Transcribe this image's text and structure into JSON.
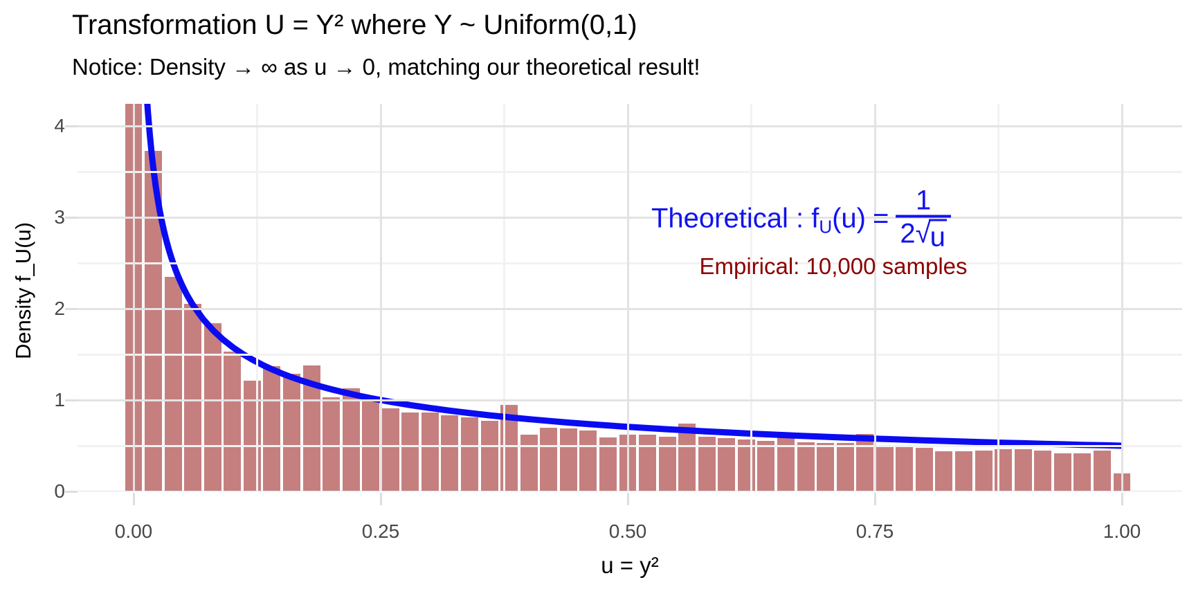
{
  "title": "Transformation U = Y² where Y ~ Uniform(0,1)",
  "subtitle": "Notice: Density → ∞ as u → 0, matching our theoretical result!",
  "axes": {
    "x_label": "u = y²",
    "y_label": "Density f_U(u)",
    "x_tick_labels": [
      "0.00",
      "0.25",
      "0.50",
      "0.75",
      "1.00"
    ],
    "y_tick_labels": [
      "0",
      "1",
      "2",
      "3",
      "4"
    ]
  },
  "annotations": {
    "theoretical": {
      "prefix": "Theoretical : f",
      "subscript": "U",
      "arg": "(u)",
      "equals": "=",
      "frac_numerator": "1",
      "frac_den_coeff": "2",
      "radical_sign": "√",
      "radicand": "u",
      "color": "#1212ee"
    },
    "empirical": {
      "text": "Empirical: 10,000 samples",
      "color": "#8b0000"
    }
  },
  "colors": {
    "bar_fill_rgba": "rgba(175,78,78,0.72)",
    "curve_blue": "#0b0bf2",
    "grid_major": "#e3e3e3",
    "grid_minor": "#f2f2f2",
    "tick_text": "#474747",
    "tick_mark": "#dedede"
  },
  "chart_data": {
    "type": "bar",
    "subtype": "histogram-with-density-curve",
    "title": "Transformation U = Y² where Y ~ Uniform(0,1)",
    "xlabel": "u = y²",
    "ylabel": "Density f_U(u)",
    "xlim": [
      -0.057,
      1.061
    ],
    "ylim": [
      0,
      4.24
    ],
    "x_major_ticks": [
      0,
      0.25,
      0.5,
      0.75,
      1.0
    ],
    "x_minor_gridlines": [
      0.125,
      0.375,
      0.625,
      0.875
    ],
    "y_major_ticks": [
      0,
      1,
      2,
      3,
      4
    ],
    "y_minor_gridlines": [
      0.5,
      1.5,
      2.5,
      3.5
    ],
    "grid": "on",
    "bin_width": 0.02,
    "bin_centers": [
      0.0,
      0.02,
      0.04,
      0.06,
      0.08,
      0.1,
      0.12,
      0.14,
      0.16,
      0.18,
      0.2,
      0.22,
      0.24,
      0.26,
      0.28,
      0.3,
      0.32,
      0.34,
      0.36,
      0.38,
      0.4,
      0.42,
      0.44,
      0.46,
      0.48,
      0.5,
      0.52,
      0.54,
      0.56,
      0.58,
      0.6,
      0.62,
      0.64,
      0.66,
      0.68,
      0.7,
      0.72,
      0.74,
      0.76,
      0.78,
      0.8,
      0.82,
      0.84,
      0.86,
      0.88,
      0.9,
      0.92,
      0.94,
      0.96,
      0.98,
      1.0
    ],
    "densities": [
      4.5,
      3.73,
      2.35,
      2.05,
      1.84,
      1.53,
      1.21,
      1.37,
      1.29,
      1.38,
      1.03,
      1.13,
      1.02,
      0.91,
      0.86,
      0.86,
      0.83,
      0.81,
      0.77,
      0.95,
      0.62,
      0.7,
      0.69,
      0.67,
      0.59,
      0.62,
      0.62,
      0.6,
      0.74,
      0.6,
      0.58,
      0.57,
      0.55,
      0.63,
      0.54,
      0.53,
      0.53,
      0.63,
      0.5,
      0.49,
      0.48,
      0.44,
      0.44,
      0.45,
      0.46,
      0.46,
      0.45,
      0.42,
      0.42,
      0.45,
      0.2
    ],
    "curve": {
      "formula": "f_U(u) = 1/(2*sqrt(u))",
      "u_range": [
        0.0125,
        1.0
      ],
      "stroke_width": 9
    },
    "n_samples": 10000
  }
}
